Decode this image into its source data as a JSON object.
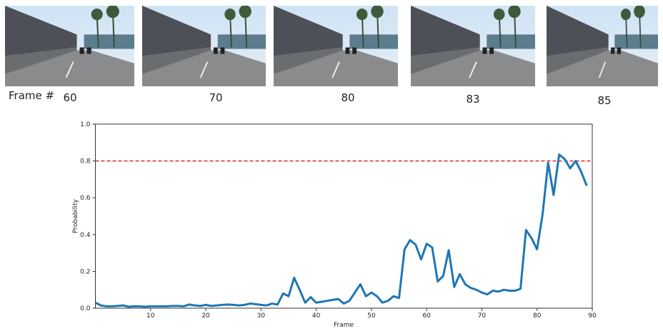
{
  "frames_label": "Frame #",
  "frames": [
    "60",
    "70",
    "80",
    "83",
    "85"
  ],
  "chart_data": {
    "type": "line",
    "xlabel": "Frame",
    "ylabel": "Probability",
    "x": [
      0,
      1,
      2,
      3,
      4,
      5,
      6,
      7,
      8,
      9,
      10,
      11,
      12,
      13,
      14,
      15,
      16,
      17,
      18,
      19,
      20,
      21,
      22,
      23,
      24,
      25,
      26,
      27,
      28,
      29,
      30,
      31,
      32,
      33,
      34,
      35,
      36,
      37,
      38,
      39,
      40,
      41,
      42,
      43,
      44,
      45,
      46,
      47,
      48,
      49,
      50,
      51,
      52,
      53,
      54,
      55,
      56,
      57,
      58,
      59,
      60,
      61,
      62,
      63,
      64,
      65,
      66,
      67,
      68,
      69,
      70,
      71,
      72,
      73,
      74,
      75,
      76,
      77,
      78,
      79,
      80,
      81,
      82,
      83,
      84,
      85,
      86,
      87,
      88,
      89
    ],
    "series": [
      {
        "color": "#1f77b4",
        "values": [
          0.03,
          0.015,
          0.01,
          0.01,
          0.012,
          0.015,
          0.008,
          0.01,
          0.01,
          0.008,
          0.01,
          0.01,
          0.01,
          0.01,
          0.012,
          0.012,
          0.01,
          0.02,
          0.015,
          0.012,
          0.018,
          0.012,
          0.015,
          0.018,
          0.02,
          0.018,
          0.015,
          0.018,
          0.025,
          0.022,
          0.018,
          0.015,
          0.025,
          0.02,
          0.08,
          0.065,
          0.165,
          0.1,
          0.03,
          0.06,
          0.03,
          0.035,
          0.04,
          0.045,
          0.05,
          0.025,
          0.04,
          0.085,
          0.13,
          0.065,
          0.085,
          0.065,
          0.03,
          0.04,
          0.065,
          0.055,
          0.32,
          0.37,
          0.345,
          0.265,
          0.35,
          0.33,
          0.145,
          0.175,
          0.315,
          0.115,
          0.185,
          0.13,
          0.11,
          0.1,
          0.085,
          0.075,
          0.095,
          0.09,
          0.1,
          0.095,
          0.095,
          0.105,
          0.425,
          0.38,
          0.32,
          0.51,
          0.79,
          0.615,
          0.835,
          0.81,
          0.76,
          0.8,
          0.74,
          0.665
        ]
      }
    ],
    "threshold": {
      "value": 0.8,
      "color": "#d62728",
      "dashed": true
    },
    "xlim": [
      0,
      90
    ],
    "ylim": [
      0,
      1
    ],
    "xticks": [
      10,
      20,
      30,
      40,
      50,
      60,
      70,
      80,
      90
    ],
    "yticks": [
      {
        "value": 0,
        "label": "0.0"
      },
      0.2,
      0.4,
      0.6,
      0.8,
      {
        "value": 1,
        "label": "1.0"
      }
    ]
  }
}
